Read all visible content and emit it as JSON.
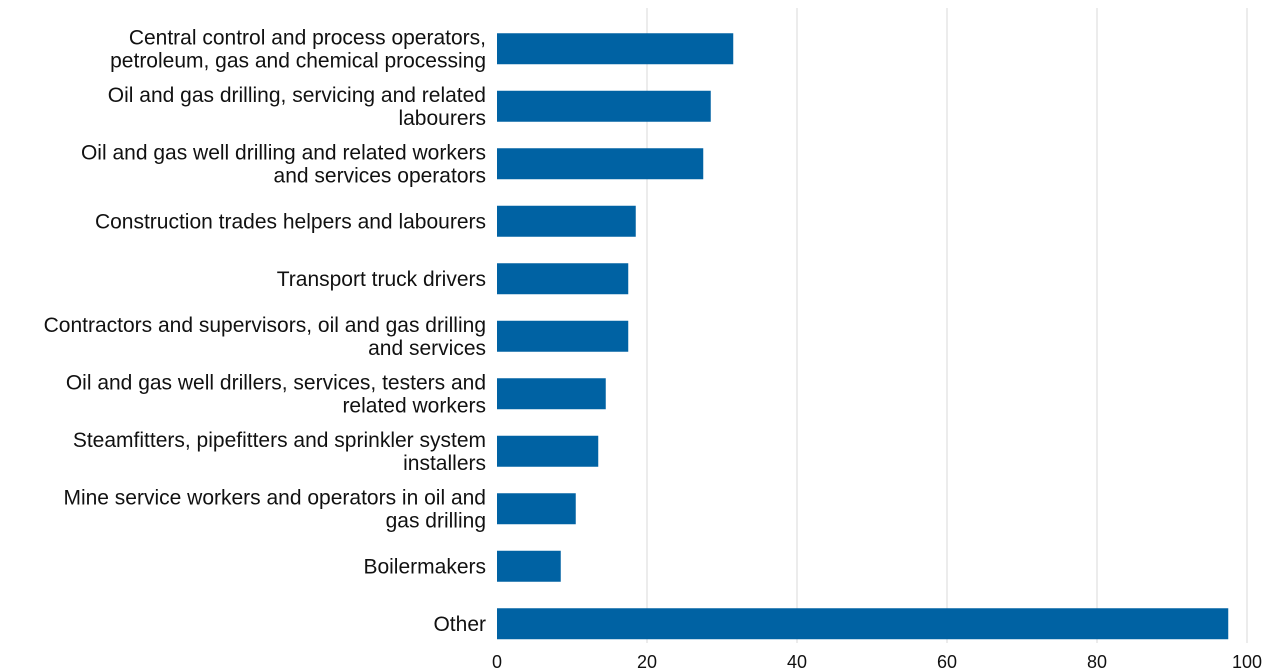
{
  "chart_data": {
    "type": "bar",
    "orientation": "horizontal",
    "categories": [
      "Central control and process operators, petroleum, gas and chemical processing",
      "Oil and gas drilling, servicing and related labourers",
      "Oil and gas well drilling and related workers and services operators",
      "Construction trades helpers and labourers",
      "Transport truck drivers",
      "Contractors and supervisors, oil and gas drilling and services",
      "Oil and gas well drillers, services, testers and related workers",
      "Steamfitters, pipefitters and sprinkler system installers",
      "Mine service workers and operators in oil and gas drilling",
      "Boilermakers",
      "Other"
    ],
    "category_label_lines": [
      [
        "Central control and process operators,",
        "petroleum, gas and chemical processing"
      ],
      [
        "Oil and gas drilling, servicing and related",
        "labourers"
      ],
      [
        "Oil and gas well drilling and related workers",
        "and services operators"
      ],
      [
        "Construction trades helpers and labourers"
      ],
      [
        "Transport truck drivers"
      ],
      [
        "Contractors and supervisors, oil and gas drilling",
        "and services"
      ],
      [
        "Oil and gas well drillers, services, testers and",
        "related workers"
      ],
      [
        "Steamfitters, pipefitters and sprinkler system",
        "installers"
      ],
      [
        "Mine service workers and operators in oil and",
        "gas drilling"
      ],
      [
        "Boilermakers"
      ],
      [
        "Other"
      ]
    ],
    "values": [
      31.5,
      28.5,
      27.5,
      18.5,
      17.5,
      17.5,
      14.5,
      13.5,
      10.5,
      8.5,
      97.5
    ],
    "xlim": [
      0,
      100
    ],
    "xticks": [
      0,
      20,
      40,
      60,
      80,
      100
    ],
    "xtick_labels": [
      "0",
      "20",
      "40",
      "60",
      "80",
      "100"
    ],
    "title": "",
    "xlabel": "",
    "ylabel": "",
    "grid": true,
    "legend": "none",
    "bar_color": "#0062a3",
    "grid_color": "#d9d9d9"
  }
}
